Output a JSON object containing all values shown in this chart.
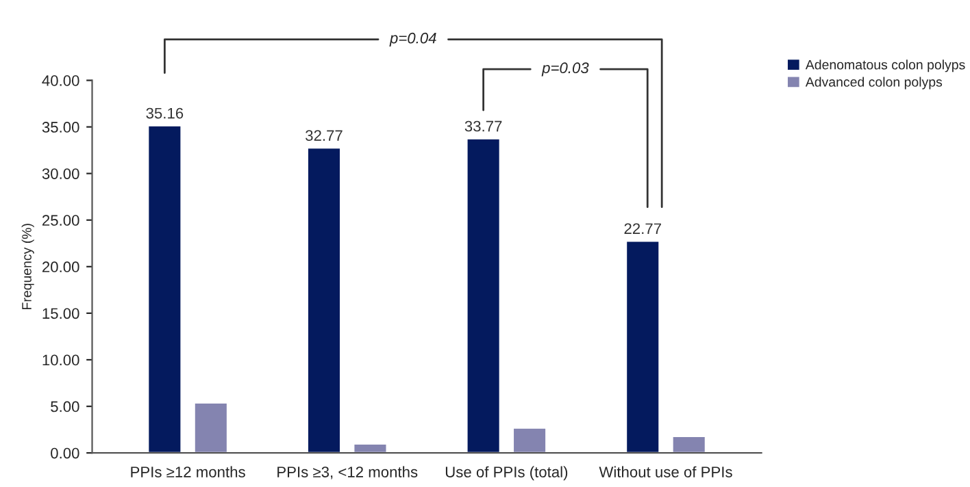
{
  "chart_data": {
    "type": "bar",
    "ylabel": "Frequency (%)",
    "categories": [
      "PPIs ≥12 months",
      "PPIs ≥3, <12 months",
      "Use of PPIs (total)",
      "Without use of PPIs"
    ],
    "series": [
      {
        "name": "Adenomatous colon polyps",
        "color": "#041a5e",
        "values": [
          35.16,
          32.77,
          33.77,
          22.77
        ],
        "value_labels": [
          "35.16",
          "32.77",
          "33.77",
          "22.77"
        ]
      },
      {
        "name": "Advanced colon polyps",
        "color": "#8484b0",
        "values": [
          5.4,
          1.0,
          2.7,
          1.8
        ]
      }
    ],
    "ylim": [
      0,
      40
    ],
    "yticks": [
      {
        "value": 0,
        "label": "0.00"
      },
      {
        "value": 5,
        "label": "5.00"
      },
      {
        "value": 10,
        "label": "10.00"
      },
      {
        "value": 15,
        "label": "15.00"
      },
      {
        "value": 20,
        "label": "20.00"
      },
      {
        "value": 25,
        "label": "25.00"
      },
      {
        "value": 30,
        "label": "30.00"
      },
      {
        "value": 35,
        "label": "35.00"
      },
      {
        "value": 40,
        "label": "40.00"
      }
    ],
    "annotations": [
      "p=0.04",
      "p=0.03"
    ],
    "grid": false,
    "legend": "top right"
  }
}
